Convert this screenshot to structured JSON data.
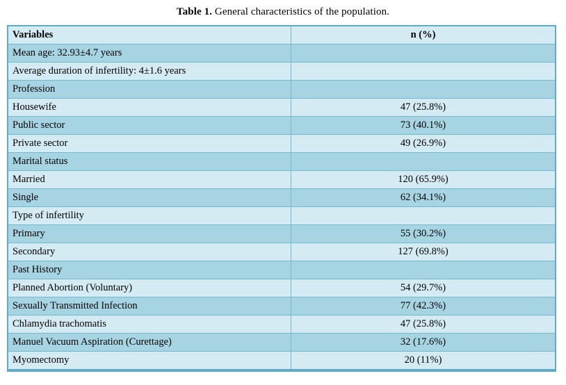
{
  "title": {
    "prefix": "Table 1.",
    "rest": " General characteristics of the population."
  },
  "table": {
    "headers": {
      "variables": "Variables",
      "value": "n (%)"
    },
    "rows": [
      {
        "variable": "Mean age: 32.93±4.7 years",
        "value": ""
      },
      {
        "variable": "Average duration of infertility: 4±1.6 years",
        "value": ""
      },
      {
        "variable": "Profession",
        "value": ""
      },
      {
        "variable": "Housewife",
        "value": "47 (25.8%)"
      },
      {
        "variable": "Public sector",
        "value": "73 (40.1%)"
      },
      {
        "variable": "Private sector",
        "value": "49 (26.9%)"
      },
      {
        "variable": "Marital status",
        "value": ""
      },
      {
        "variable": "Married",
        "value": "120 (65.9%)"
      },
      {
        "variable": "Single",
        "value": "62 (34.1%)"
      },
      {
        "variable": "Type of infertility",
        "value": ""
      },
      {
        "variable": "Primary",
        "value": "55 (30.2%)"
      },
      {
        "variable": "Secondary",
        "value": "127 (69.8%)"
      },
      {
        "variable": "Past History",
        "value": ""
      },
      {
        "variable": "Planned Abortion (Voluntary)",
        "value": "54 (29.7%)"
      },
      {
        "variable": "Sexually Transmitted Infection",
        "value": "77 (42.3%)"
      },
      {
        "variable": "Chlamydia trachomatis",
        "value": "47 (25.8%)"
      },
      {
        "variable": "Manuel Vacuum Aspiration (Curettage)",
        "value": "32 (17.6%)"
      },
      {
        "variable": "Myomectomy",
        "value": "20 (11%)"
      }
    ],
    "colors": {
      "row_dark": "#a7d4e2",
      "row_light": "#d5ebf3",
      "border": "#74b8ce",
      "outer_border": "#5faac4",
      "text": "#000000",
      "page_background": "#ffffff"
    }
  }
}
